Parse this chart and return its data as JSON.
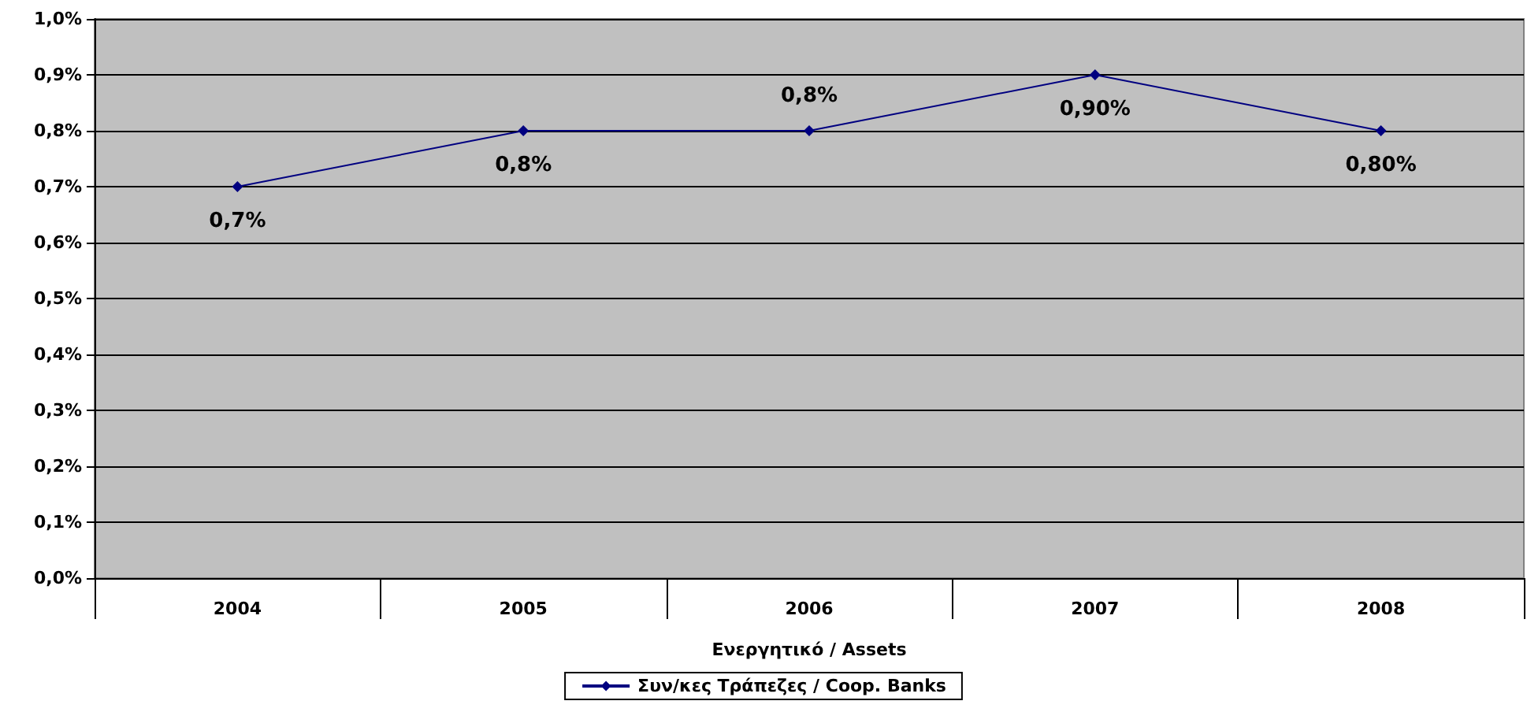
{
  "chart_data": {
    "type": "line",
    "xlabel": "Ενεργητικό / Assets",
    "categories": [
      "2004",
      "2005",
      "2006",
      "2007",
      "2008"
    ],
    "series": [
      {
        "name": "Συν/κες Τράπεζες / Coop. Banks",
        "color": "#000080",
        "values": [
          0.7,
          0.8,
          0.8,
          0.9,
          0.8
        ],
        "value_labels": [
          "0,7%",
          "0,8%",
          "0,8%",
          "0,90%",
          "0,80%"
        ]
      }
    ],
    "ylim": [
      0,
      1
    ],
    "yticks": [
      {
        "value": 0,
        "label": "0,0%"
      },
      {
        "value": 0.1,
        "label": "0,1%"
      },
      {
        "value": 0.2,
        "label": "0,2%"
      },
      {
        "value": 0.3,
        "label": "0,3%"
      },
      {
        "value": 0.4,
        "label": "0,4%"
      },
      {
        "value": 0.5,
        "label": "0,5%"
      },
      {
        "value": 0.6,
        "label": "0,6%"
      },
      {
        "value": 0.7,
        "label": "0,7%"
      },
      {
        "value": 0.8,
        "label": "0,8%"
      },
      {
        "value": 0.9,
        "label": "0,9%"
      },
      {
        "value": 1,
        "label": "1,0%"
      }
    ],
    "grid": "y",
    "legend": "bottom",
    "marker": "diamond",
    "line_style": "solid"
  }
}
